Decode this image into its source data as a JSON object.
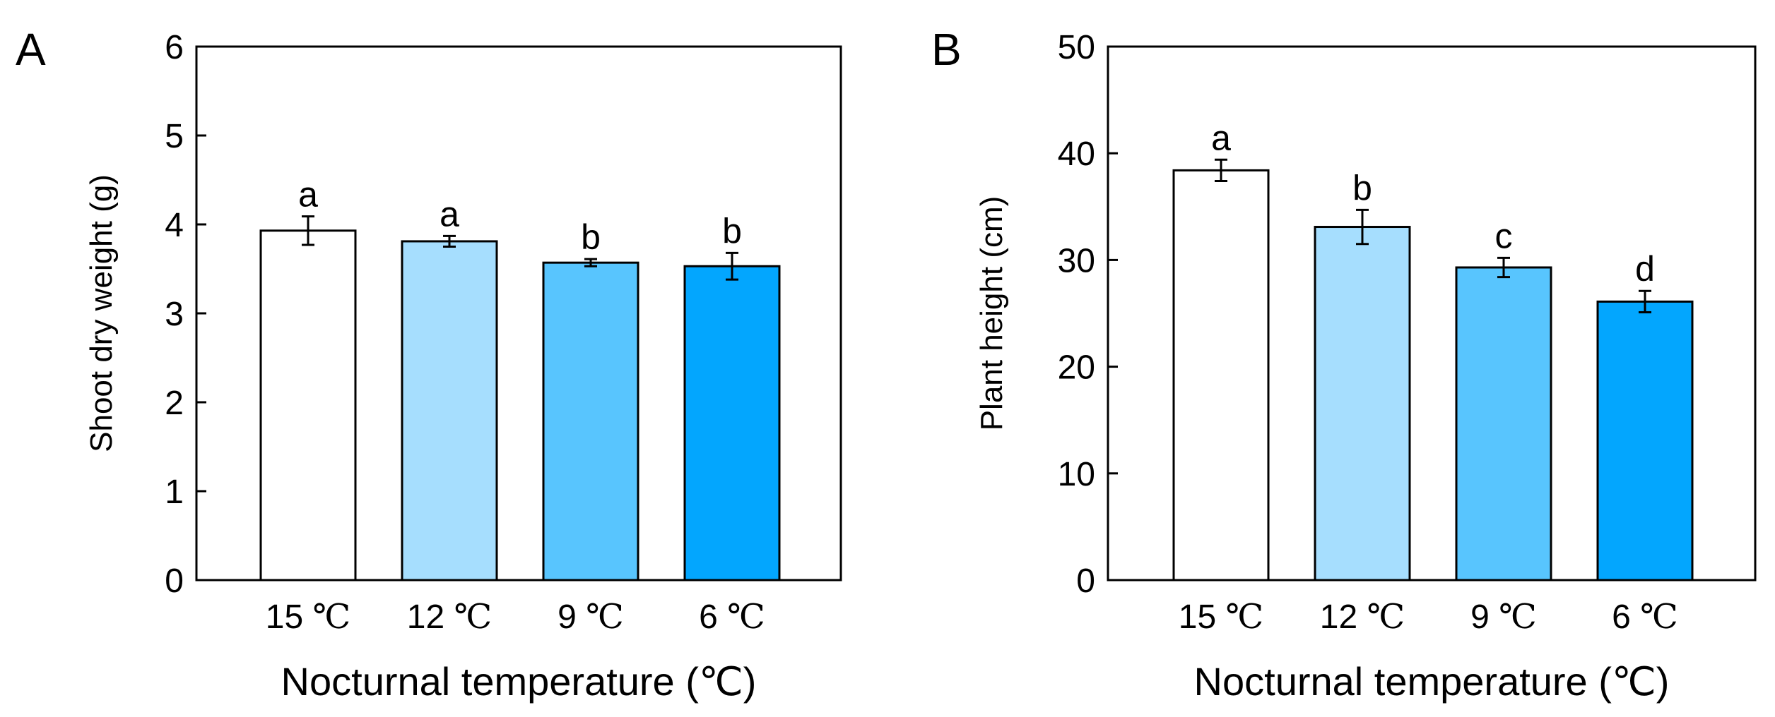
{
  "chart_data": [
    {
      "type": "bar",
      "panel_label": "A",
      "categories": [
        "15",
        "12",
        "9",
        "6"
      ],
      "category_unit": "℃",
      "values": [
        3.93,
        3.81,
        3.57,
        3.53
      ],
      "errors": [
        0.16,
        0.06,
        0.04,
        0.15
      ],
      "significance_letters": [
        "a",
        "a",
        "b",
        "b"
      ],
      "colors": [
        "#ffffff",
        "#a6defe",
        "#58c5fe",
        "#03a6fe"
      ],
      "xlabel": "Nocturnal temperature (℃)",
      "ylabel": "Shoot dry weight (g)",
      "ylim": [
        0,
        6
      ],
      "yticks": [
        0,
        1,
        2,
        3,
        4,
        5,
        6
      ],
      "grid": false
    },
    {
      "type": "bar",
      "panel_label": "B",
      "categories": [
        "15",
        "12",
        "9",
        "6"
      ],
      "category_unit": "℃",
      "values": [
        38.4,
        33.1,
        29.3,
        26.1
      ],
      "errors": [
        1.0,
        1.6,
        0.9,
        1.0
      ],
      "significance_letters": [
        "a",
        "b",
        "c",
        "d"
      ],
      "colors": [
        "#ffffff",
        "#a6defe",
        "#58c5fe",
        "#03a6fe"
      ],
      "xlabel": "Nocturnal temperature (℃)",
      "ylabel": "Plant height (cm)",
      "ylim": [
        0,
        50
      ],
      "yticks": [
        0,
        10,
        20,
        30,
        40,
        50
      ],
      "grid": false
    }
  ]
}
